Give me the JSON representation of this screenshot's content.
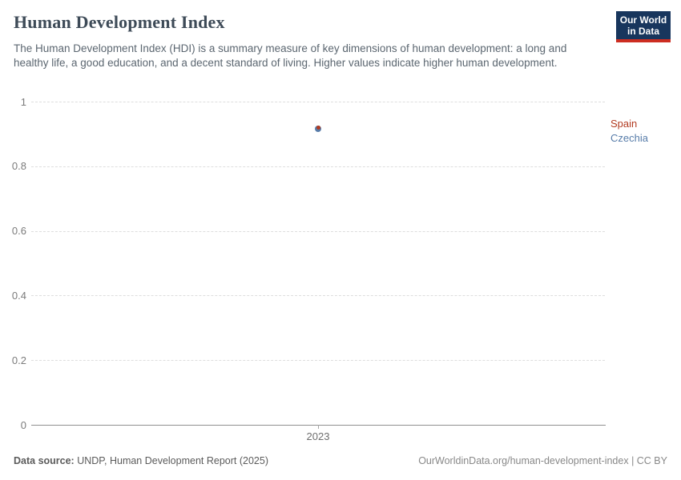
{
  "header": {
    "title": "Human Development Index",
    "subtitle": "The Human Development Index (HDI) is a summary measure of key dimensions of human development: a long and healthy life, a good education, and a decent standard of living. Higher values indicate higher human development.",
    "logo": {
      "line1": "Our World",
      "line2": "in Data",
      "background_color": "#18365d",
      "accent_color": "#cd2d21"
    }
  },
  "chart_data": {
    "type": "scatter",
    "title": "Human Development Index",
    "x": [
      2023
    ],
    "x_tick_labels": [
      "2023"
    ],
    "series": [
      {
        "name": "Spain",
        "values": [
          0.92
        ],
        "color": "#b23b21",
        "marker_size": 5
      },
      {
        "name": "Czechia",
        "values": [
          0.915
        ],
        "color": "#577ca9",
        "marker_size": 8
      }
    ],
    "xlabel": "",
    "ylabel": "",
    "ylim": [
      0,
      1
    ],
    "y_ticks": [
      0,
      0.2,
      0.4,
      0.6,
      0.8,
      1
    ],
    "grid": "horizontal-dashed",
    "legend_position": "right"
  },
  "footer": {
    "source_label": "Data source:",
    "source_text": " UNDP, Human Development Report (2025)",
    "rights": "OurWorldinData.org/human-development-index | CC BY"
  }
}
